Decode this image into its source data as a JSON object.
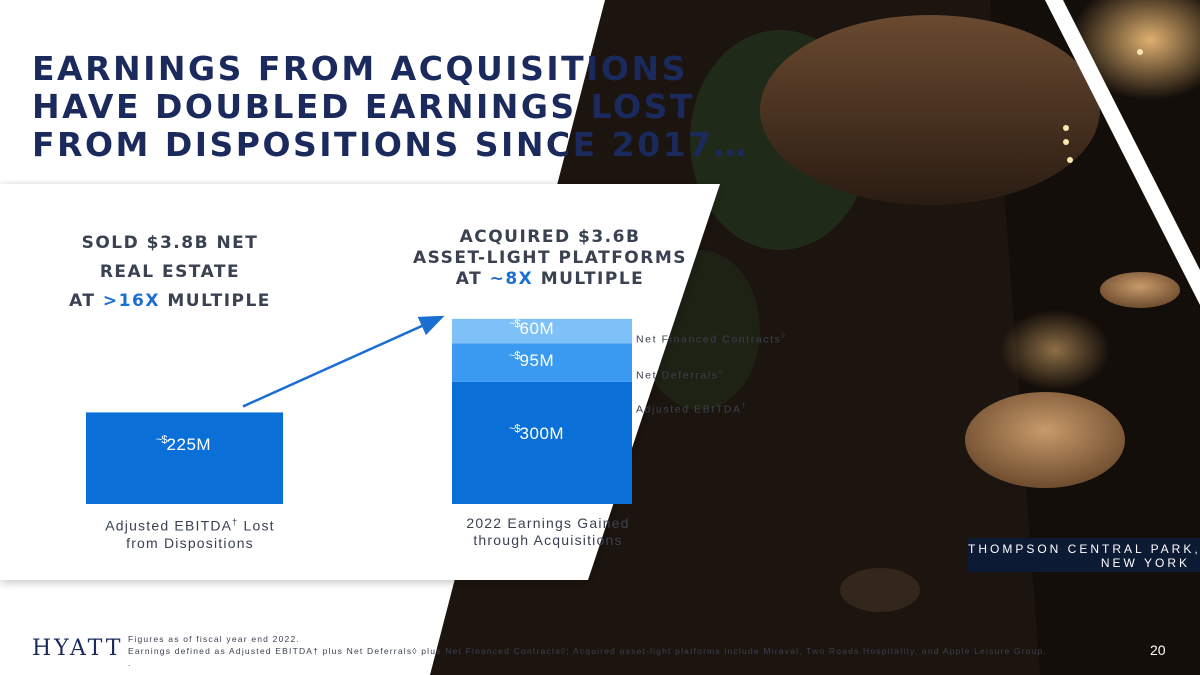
{
  "headline": {
    "lines": [
      "EARNINGS FROM ACQUISITIONS",
      "HAVE DOUBLED EARNINGS LOST",
      "FROM DISPOSITIONS SINCE 2017…"
    ]
  },
  "left_column": {
    "title_line1": "SOLD $3.8B NET",
    "title_line2": "REAL ESTATE",
    "title_line3_pre": "AT ",
    "title_line3_hl": ">16X",
    "title_line3_post": " MULTIPLE"
  },
  "right_column": {
    "title_line1": "ACQUIRED $3.6B",
    "title_line2": "ASSET-LIGHT PLATFORMS",
    "title_line3_pre": "AT ",
    "title_line3_hl": "~8X",
    "title_line3_post": " MULTIPLE"
  },
  "chart_data": {
    "type": "bar",
    "stacked": true,
    "categories": [
      "Adjusted EBITDA† Lost from Dispositions",
      "2022 Earnings Gained through Acquisitions"
    ],
    "series": [
      {
        "name": "Adjusted EBITDA†",
        "values": [
          225,
          300
        ],
        "labels": [
          "225M",
          "300M"
        ],
        "color": "#0a6fd6"
      },
      {
        "name": "Net Deferrals◊",
        "values": [
          0,
          95
        ],
        "labels": [
          "",
          "95M"
        ],
        "color": "#3a9af2"
      },
      {
        "name": "Net Financed Contracts◊",
        "values": [
          0,
          60
        ],
        "labels": [
          "",
          "60M"
        ],
        "color": "#7ec0f8"
      }
    ],
    "value_prefix": "~$",
    "arrow": "from left bar to right bar"
  },
  "category_labels": {
    "left_line1": "Adjusted EBITDA",
    "left_dagger": "†",
    "left_line1_post": " Lost",
    "left_line2": "from Dispositions",
    "right_line1": "2022 Earnings Gained",
    "right_line2": "through Acquisitions"
  },
  "legend": {
    "item1": "Net Financed Contracts",
    "item1_mark": "◊",
    "item2": "Net Deferrals",
    "item2_mark": "◊",
    "item3": "Adjusted EBITDA",
    "item3_mark": "†"
  },
  "location": {
    "line1": "THOMPSON CENTRAL PARK,",
    "line2": "NEW YORK"
  },
  "footnotes": {
    "line1": "Figures as of fiscal year end 2022.",
    "line2": "Earnings defined as Adjusted EBITDA† plus Net Deferrals◊ plus Net Financed Contracts◊; Acquired asset-light platforms include Miraval, Two Roads Hospitality, and Apple Leisure Group.",
    "line3": "."
  },
  "logo": {
    "text": "HYATT"
  },
  "page_number": "20",
  "colors": {
    "navy": "#1b2a5c",
    "accent_blue": "#1b6fd3",
    "photo_dark": "#1c140e"
  }
}
